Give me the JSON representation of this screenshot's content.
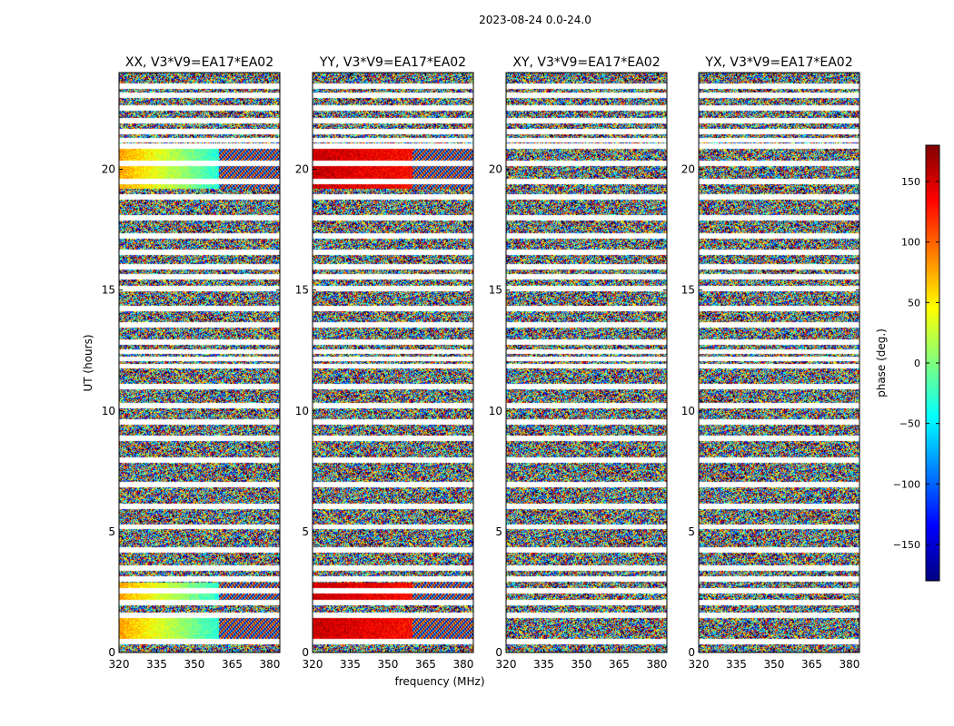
{
  "figure": {
    "suptitle": "2023-08-24 0.0-24.0"
  },
  "chart_data": {
    "type": "heatmap",
    "ylabel": "UT (hours)",
    "xlabel": "frequency (MHz)",
    "xlim": [
      320,
      384
    ],
    "ylim": [
      0,
      24
    ],
    "xticks": [
      320,
      335,
      350,
      365,
      380
    ],
    "yticks": [
      0,
      5,
      10,
      15,
      20
    ],
    "panels": [
      {
        "title": "XX, V3*V9=EA17*EA02",
        "pol": "XX"
      },
      {
        "title": "YY, V3*V9=EA17*EA02",
        "pol": "YY"
      },
      {
        "title": "XY, V3*V9=EA17*EA02",
        "pol": "XY"
      },
      {
        "title": "YX, V3*V9=EA17*EA02",
        "pol": "YX"
      }
    ],
    "colorbar": {
      "label": "phase (deg.)",
      "range": [
        -180,
        180
      ],
      "ticks": [
        150,
        100,
        50,
        0,
        -50,
        -100,
        -150
      ],
      "tick_labels": [
        "150",
        "100",
        "50",
        "0",
        "−50",
        "−100",
        "−150"
      ],
      "colormap": "jet",
      "colors": [
        "#00007f",
        "#0000ff",
        "#007fff",
        "#00ffff",
        "#7fff7f",
        "#ffff00",
        "#ff7f00",
        "#ff0000",
        "#7f0000"
      ]
    },
    "flagged_ut_hours": [
      0.45,
      1.55,
      2.05,
      2.55,
      3.05,
      3.5,
      4.25,
      5.2,
      6.05,
      6.95,
      7.95,
      8.85,
      9.55,
      10.2,
      11.0,
      11.85,
      12.15,
      12.45,
      12.85,
      13.55,
      14.25,
      15.05,
      15.55,
      15.95,
      16.55,
      17.25,
      18.0,
      18.85,
      19.5,
      20.25,
      20.95,
      21.2,
      21.55,
      22.0,
      22.55,
      23.05,
      23.45
    ]
  }
}
